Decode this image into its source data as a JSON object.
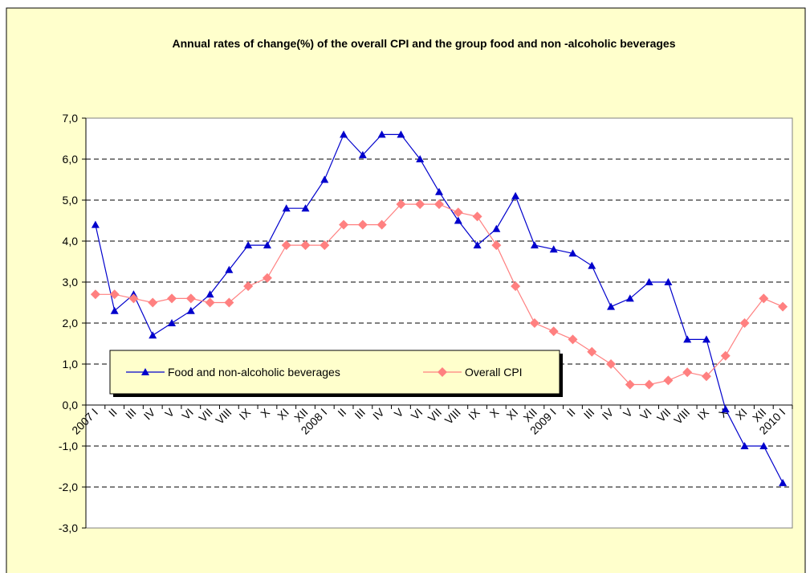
{
  "chart_data": {
    "type": "line",
    "title": "Annual rates of change(%) of the overall CPI and  the group food and non -alcoholic beverages",
    "categories": [
      "2007 I",
      "II",
      "III",
      "IV",
      "V",
      "VI",
      "VII",
      "VIII",
      "IX",
      "X",
      "XI",
      "XII",
      "2008 I",
      "II",
      "III",
      "IV",
      "V",
      "VI",
      "VII",
      "VIII",
      "IX",
      "X",
      "XI",
      "XII",
      "2009 I",
      "II",
      "III",
      "IV",
      "V",
      "VI",
      "VII",
      "VIII",
      "IX",
      "X",
      "XI",
      "XII",
      "2010 I"
    ],
    "series": [
      {
        "name": "Food and non-alcoholic beverages",
        "color": "#0000cc",
        "marker": "triangle",
        "values": [
          4.4,
          2.3,
          2.7,
          1.7,
          2.0,
          2.3,
          2.7,
          3.3,
          3.9,
          3.9,
          4.8,
          4.8,
          5.5,
          6.6,
          6.1,
          6.6,
          6.6,
          6.0,
          5.2,
          4.5,
          3.9,
          4.3,
          5.1,
          3.9,
          3.8,
          3.7,
          3.4,
          2.4,
          2.6,
          3.0,
          3.0,
          1.6,
          1.6,
          -0.1,
          -1.0,
          -1.0,
          -1.9
        ]
      },
      {
        "name": "Overall CPI",
        "color": "#ff8080",
        "marker": "diamond",
        "values": [
          2.7,
          2.7,
          2.6,
          2.5,
          2.6,
          2.6,
          2.5,
          2.5,
          2.9,
          3.1,
          3.9,
          3.9,
          3.9,
          4.4,
          4.4,
          4.4,
          4.9,
          4.9,
          4.9,
          4.7,
          4.6,
          3.9,
          2.9,
          2.0,
          1.8,
          1.6,
          1.3,
          1.0,
          0.5,
          0.5,
          0.6,
          0.8,
          0.7,
          1.2,
          2.0,
          2.6,
          2.4
        ]
      }
    ],
    "ylim": [
      -3,
      7
    ],
    "yticks": [
      {
        "value": -3,
        "label": "-3,0"
      },
      {
        "value": -2,
        "label": "-2,0"
      },
      {
        "value": -1,
        "label": "-1,0"
      },
      {
        "value": 0,
        "label": "0,0"
      },
      {
        "value": 1,
        "label": "1,0"
      },
      {
        "value": 2,
        "label": "2,0"
      },
      {
        "value": 3,
        "label": "3,0"
      },
      {
        "value": 4,
        "label": "4,0"
      },
      {
        "value": 5,
        "label": "5,0"
      },
      {
        "value": 6,
        "label": "6,0"
      },
      {
        "value": 7,
        "label": "7,0"
      }
    ],
    "grid": true,
    "legend": "lower left"
  }
}
